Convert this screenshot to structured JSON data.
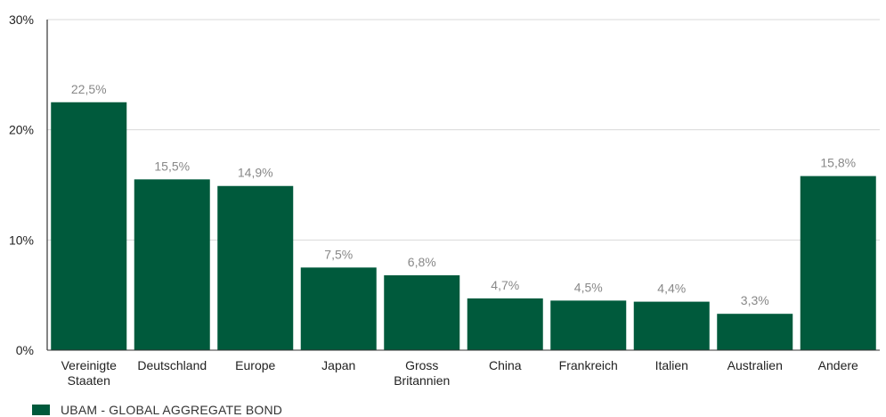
{
  "chart_data": {
    "type": "bar",
    "categories": [
      "Vereinigte Staaten",
      "Deutschland",
      "Europe",
      "Japan",
      "Gross Britannien",
      "China",
      "Frankreich",
      "Italien",
      "Australien",
      "Andere"
    ],
    "category_lines": [
      [
        "Vereinigte",
        "Staaten"
      ],
      [
        "Deutschland"
      ],
      [
        "Europe"
      ],
      [
        "Japan"
      ],
      [
        "Gross",
        "Britannien"
      ],
      [
        "China"
      ],
      [
        "Frankreich"
      ],
      [
        "Italien"
      ],
      [
        "Australien"
      ],
      [
        "Andere"
      ]
    ],
    "series": [
      {
        "name": "UBAM - GLOBAL AGGREGATE BOND",
        "values": [
          22.5,
          15.5,
          14.9,
          7.5,
          6.8,
          4.7,
          4.5,
          4.4,
          3.3,
          15.8
        ],
        "data_labels": [
          "22,5%",
          "15,5%",
          "14,9%",
          "7,5%",
          "6,8%",
          "4,7%",
          "4,5%",
          "4,4%",
          "3,3%",
          "15,8%"
        ]
      }
    ],
    "yticks": [
      0,
      10,
      20,
      30
    ],
    "ytick_labels": [
      "0%",
      "10%",
      "20%",
      "30%"
    ],
    "ylim": [
      0,
      30
    ],
    "grid": true,
    "legend_position": "bottom-left",
    "colors": {
      "bar": "#005a3c",
      "grid": "#d9d9d9",
      "axis": "#333333"
    }
  },
  "legend": {
    "label": "UBAM - GLOBAL AGGREGATE BOND"
  }
}
